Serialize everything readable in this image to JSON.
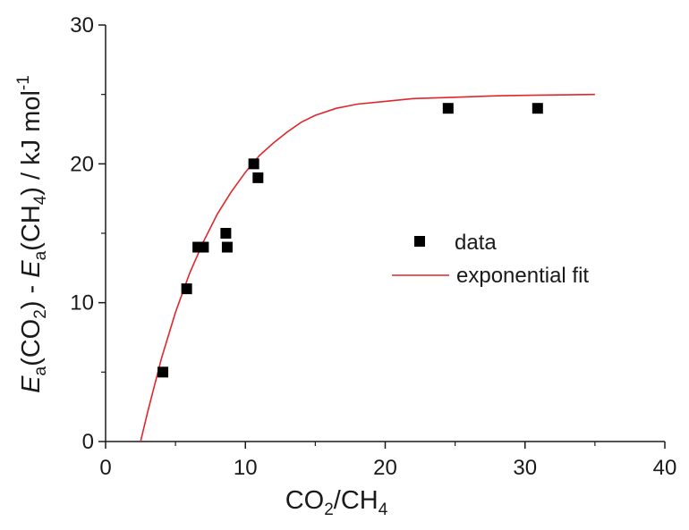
{
  "chart_data": {
    "type": "scatter",
    "xlim": [
      0,
      40
    ],
    "ylim": [
      0,
      30
    ],
    "x_ticks": [
      0,
      10,
      20,
      30,
      40
    ],
    "y_ticks": [
      0,
      10,
      20,
      30
    ],
    "xlabel": {
      "main1": "CO",
      "sub1": "2",
      "main2": "/CH",
      "sub2": "4"
    },
    "ylabel": {
      "e1": "E",
      "s1": "a",
      "t1": "(CO",
      "s2": "2",
      "t2": ") - ",
      "e2": "E",
      "s3": "a",
      "t3": "(CH",
      "s4": "4",
      "t4": ") / kJ mol",
      "sup": "-1"
    },
    "series": [
      {
        "name": "data",
        "kind": "points",
        "marker": "square",
        "color": "#000000",
        "points": [
          [
            4.1,
            5.0
          ],
          [
            5.8,
            11.0
          ],
          [
            6.6,
            14.0
          ],
          [
            7.0,
            14.0
          ],
          [
            8.6,
            15.0
          ],
          [
            8.7,
            14.0
          ],
          [
            10.6,
            20.0
          ],
          [
            10.9,
            19.0
          ],
          [
            24.5,
            24.0
          ],
          [
            30.9,
            24.0
          ]
        ]
      },
      {
        "name": "exponential fit",
        "kind": "line",
        "color": "#e0262b",
        "points": [
          [
            2.5,
            0.0
          ],
          [
            3.0,
            2.1
          ],
          [
            4.0,
            6.0
          ],
          [
            5.0,
            9.3
          ],
          [
            6.0,
            12.1
          ],
          [
            7.0,
            14.4
          ],
          [
            8.0,
            16.4
          ],
          [
            9.0,
            18.0
          ],
          [
            10.0,
            19.4
          ],
          [
            11.0,
            20.6
          ],
          [
            12.0,
            21.5
          ],
          [
            13.0,
            22.3
          ],
          [
            14.0,
            23.0
          ],
          [
            15.0,
            23.5
          ],
          [
            16.5,
            24.0
          ],
          [
            18.0,
            24.3
          ],
          [
            20.0,
            24.5
          ],
          [
            22.0,
            24.7
          ],
          [
            25.0,
            24.8
          ],
          [
            28.0,
            24.9
          ],
          [
            31.0,
            24.95
          ],
          [
            35.0,
            25.0
          ]
        ]
      }
    ],
    "legend": "center-right"
  }
}
